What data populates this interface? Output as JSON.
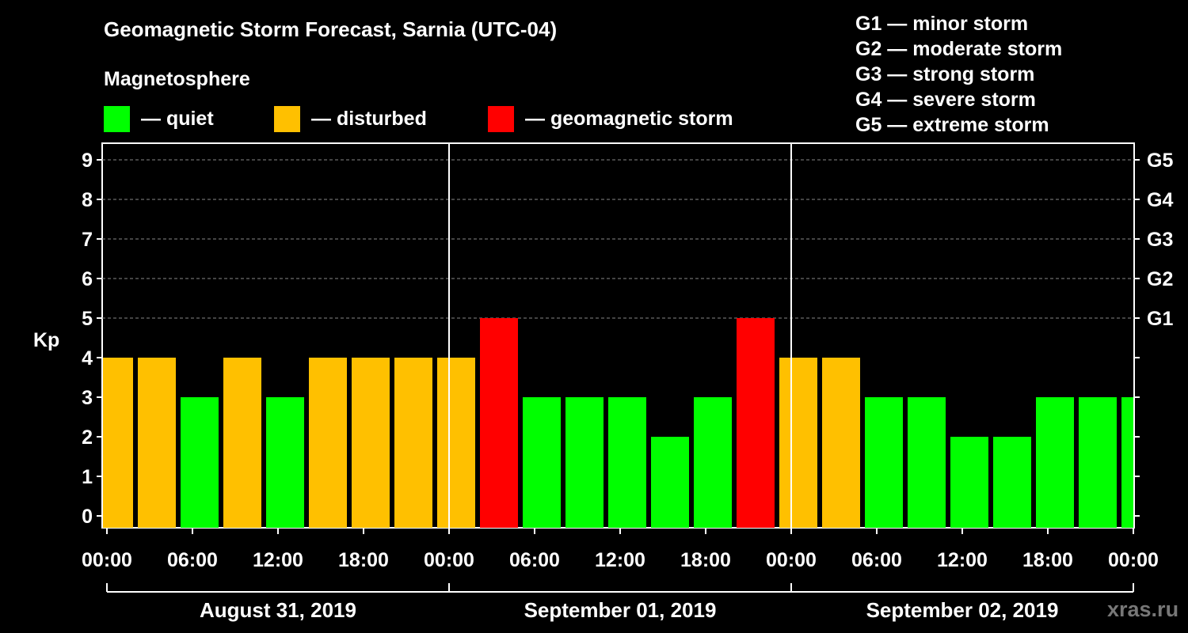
{
  "title": "Geomagnetic Storm Forecast, Sarnia (UTC-04)",
  "magnetosphere_label": "Magnetosphere",
  "legend": [
    {
      "label": "— quiet",
      "color": "#00ff00"
    },
    {
      "label": "— disturbed",
      "color": "#ffc000"
    },
    {
      "label": "— geomagnetic storm",
      "color": "#ff0000"
    }
  ],
  "g_levels": [
    "G1 — minor storm",
    "G2 — moderate storm",
    "G3 — strong storm",
    "G4 — severe storm",
    "G5 — extreme storm"
  ],
  "watermark": "xras.ru",
  "chart_data": {
    "type": "bar",
    "ylabel": "Kp",
    "ylim": [
      0,
      9
    ],
    "yticks": [
      0,
      1,
      2,
      3,
      4,
      5,
      6,
      7,
      8,
      9
    ],
    "right_axis_labels": [
      {
        "kp": 5,
        "label": "G1"
      },
      {
        "kp": 6,
        "label": "G2"
      },
      {
        "kp": 7,
        "label": "G3"
      },
      {
        "kp": 8,
        "label": "G4"
      },
      {
        "kp": 9,
        "label": "G5"
      }
    ],
    "grid": "horizontal dashed at Kp 5-9",
    "x_hours_range": [
      -1,
      71
    ],
    "x_tick_labels": [
      {
        "hour": 0,
        "label": "00:00"
      },
      {
        "hour": 6,
        "label": "06:00"
      },
      {
        "hour": 12,
        "label": "12:00"
      },
      {
        "hour": 18,
        "label": "18:00"
      },
      {
        "hour": 24,
        "label": "00:00"
      },
      {
        "hour": 30,
        "label": "06:00"
      },
      {
        "hour": 36,
        "label": "12:00"
      },
      {
        "hour": 42,
        "label": "18:00"
      },
      {
        "hour": 48,
        "label": "00:00"
      },
      {
        "hour": 54,
        "label": "06:00"
      },
      {
        "hour": 60,
        "label": "12:00"
      },
      {
        "hour": 66,
        "label": "18:00"
      },
      {
        "hour": 72,
        "label": "00:00"
      }
    ],
    "days": [
      {
        "label": "August 31, 2019",
        "start_hour": 0,
        "end_hour": 24
      },
      {
        "label": "September 01, 2019",
        "start_hour": 24,
        "end_hour": 48
      },
      {
        "label": "September 02, 2019",
        "start_hour": 48,
        "end_hour": 72
      }
    ],
    "category_colors": {
      "quiet": "#00ff00",
      "disturbed": "#ffc000",
      "storm": "#ff0000"
    },
    "bars": [
      {
        "start_hour": -1,
        "end_hour": 2,
        "kp": 4,
        "status": "disturbed"
      },
      {
        "start_hour": 2,
        "end_hour": 5,
        "kp": 4,
        "status": "disturbed"
      },
      {
        "start_hour": 5,
        "end_hour": 8,
        "kp": 3,
        "status": "quiet"
      },
      {
        "start_hour": 8,
        "end_hour": 11,
        "kp": 4,
        "status": "disturbed"
      },
      {
        "start_hour": 11,
        "end_hour": 14,
        "kp": 3,
        "status": "quiet"
      },
      {
        "start_hour": 14,
        "end_hour": 17,
        "kp": 4,
        "status": "disturbed"
      },
      {
        "start_hour": 17,
        "end_hour": 20,
        "kp": 4,
        "status": "disturbed"
      },
      {
        "start_hour": 20,
        "end_hour": 23,
        "kp": 4,
        "status": "disturbed"
      },
      {
        "start_hour": 23,
        "end_hour": 26,
        "kp": 4,
        "status": "disturbed"
      },
      {
        "start_hour": 26,
        "end_hour": 29,
        "kp": 5,
        "status": "storm"
      },
      {
        "start_hour": 29,
        "end_hour": 32,
        "kp": 3,
        "status": "quiet"
      },
      {
        "start_hour": 32,
        "end_hour": 35,
        "kp": 3,
        "status": "quiet"
      },
      {
        "start_hour": 35,
        "end_hour": 38,
        "kp": 3,
        "status": "quiet"
      },
      {
        "start_hour": 38,
        "end_hour": 41,
        "kp": 2,
        "status": "quiet"
      },
      {
        "start_hour": 41,
        "end_hour": 44,
        "kp": 3,
        "status": "quiet"
      },
      {
        "start_hour": 44,
        "end_hour": 47,
        "kp": 5,
        "status": "storm"
      },
      {
        "start_hour": 47,
        "end_hour": 50,
        "kp": 4,
        "status": "disturbed"
      },
      {
        "start_hour": 50,
        "end_hour": 53,
        "kp": 4,
        "status": "disturbed"
      },
      {
        "start_hour": 53,
        "end_hour": 56,
        "kp": 3,
        "status": "quiet"
      },
      {
        "start_hour": 56,
        "end_hour": 59,
        "kp": 3,
        "status": "quiet"
      },
      {
        "start_hour": 59,
        "end_hour": 62,
        "kp": 2,
        "status": "quiet"
      },
      {
        "start_hour": 62,
        "end_hour": 65,
        "kp": 2,
        "status": "quiet"
      },
      {
        "start_hour": 65,
        "end_hour": 68,
        "kp": 3,
        "status": "quiet"
      },
      {
        "start_hour": 68,
        "end_hour": 71,
        "kp": 3,
        "status": "quiet"
      },
      {
        "start_hour": 71,
        "end_hour": 74,
        "kp": 3,
        "status": "quiet"
      }
    ]
  }
}
